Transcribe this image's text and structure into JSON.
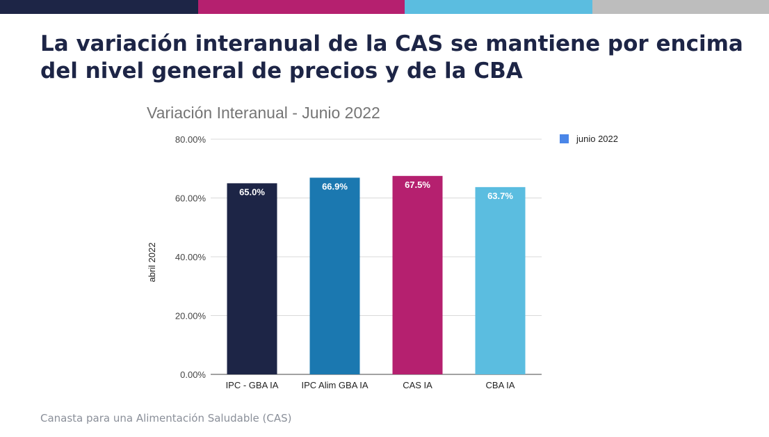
{
  "slide": {
    "top_bar_colors": [
      "#1d2546",
      "#b5206f",
      "#5bbde0",
      "#bdbdbd"
    ],
    "headline": "La variación interanual de la CAS se mantiene por encima del nivel general de precios y de la CBA",
    "footer": "Canasta para una Alimentación Saludable (CAS)"
  },
  "chart_data": {
    "type": "bar",
    "title": "Variación Interanual - Junio 2022",
    "xlabel": "",
    "ylabel": "abril 2022",
    "ylim": [
      0,
      80
    ],
    "yticks": [
      0,
      20,
      40,
      60,
      80
    ],
    "ytick_labels": [
      "0.00%",
      "20.00%",
      "40.00%",
      "60.00%",
      "80.00%"
    ],
    "grid": true,
    "legend_position": "top-right",
    "categories": [
      "IPC - GBA IA",
      "IPC Alim GBA IA",
      "CAS IA",
      "CBA IA"
    ],
    "series": [
      {
        "name": "junio 2022",
        "values": [
          65.0,
          66.9,
          67.5,
          63.7
        ],
        "labels": [
          "65.0%",
          "66.9%",
          "67.5%",
          "63.7%"
        ],
        "colors": [
          "#1d2546",
          "#1b78b0",
          "#b5206f",
          "#5bbde0"
        ]
      }
    ],
    "legend_color": "#4a86e8"
  }
}
